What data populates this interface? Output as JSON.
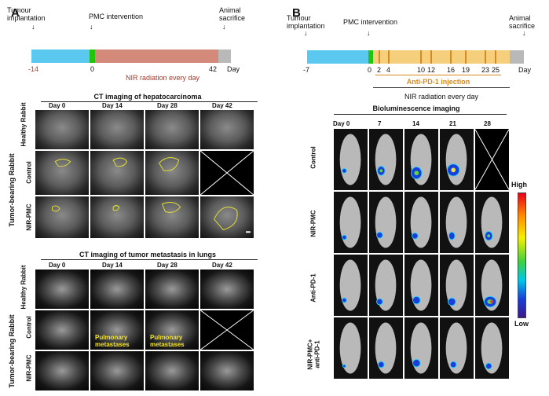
{
  "panelA": {
    "letter": "A",
    "timeline": {
      "tumour_implantation": "Tumour implantation",
      "pmc_intervention": "PMC intervention",
      "animal_sacrifice": "Animal sacrifice",
      "tick_start": "-14",
      "tick_zero": "0",
      "tick_end": "42",
      "day_label": "Day",
      "nir_label": "NIR radiation every day"
    },
    "ct_hepato": {
      "title": "CT imaging of hepatocarcinoma",
      "days": [
        "Day 0",
        "Day 14",
        "Day 28",
        "Day 42"
      ],
      "row_healthy": "Healthy Rabbit",
      "group_tumor": "Tumor-bearing Rabbit",
      "row_control": "Control",
      "row_nirpmc": "NIR-PMC"
    },
    "ct_lung": {
      "title": "CT imaging of tumor metastasis in lungs",
      "days": [
        "Day 0",
        "Day 14",
        "Day 28",
        "Day 42"
      ],
      "row_healthy": "Healthy Rabbit",
      "group_tumor": "Tumor-bearing Rabbit",
      "row_control": "Control",
      "row_nirpmc": "NIR-PMC",
      "annotation": "Pulmonary metastases"
    }
  },
  "panelB": {
    "letter": "B",
    "timeline": {
      "tumour_implantation": "Tumour implantation",
      "pmc_intervention": "PMC intervention",
      "animal_sacrifice": "Animal sacrifice",
      "tick_start": "-7",
      "tick_zero": "0",
      "day_label": "Day",
      "injection_days": [
        "2",
        "4",
        "10",
        "12",
        "16",
        "19",
        "23",
        "25"
      ],
      "injection_label": "Anti-PD-1 injection",
      "nir_label": "NIR radiation every day"
    },
    "bioluminescence": {
      "title": "Bioluminescence imaging",
      "days": [
        "Day 0",
        "7",
        "14",
        "21",
        "28"
      ],
      "rows": [
        "Control",
        "NIR-PMC",
        "Anti-PD-1",
        "NIR-PMC+ anti-PD-1"
      ],
      "scale_high": "High",
      "scale_low": "Low"
    }
  },
  "colors": {
    "pre_phase": "#5bc8ef",
    "intervention": "#22c40e",
    "nir_phase_A": "#d38a7a",
    "end_phase": "#b9b9b9",
    "nir_phase_B": "#f6cf7c",
    "injection": "#d88a1e",
    "outline": "#e3e033"
  }
}
